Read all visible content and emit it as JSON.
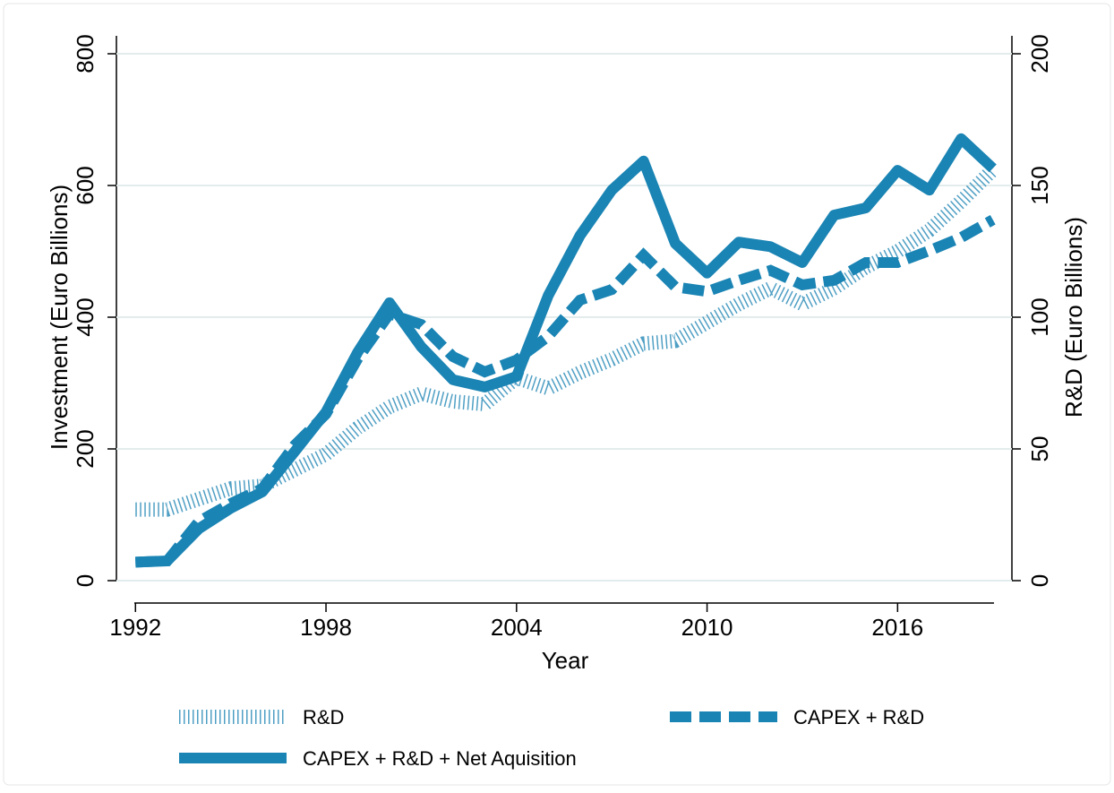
{
  "chart_data": {
    "type": "line",
    "x_label": "Year",
    "y_label": "Investment (Euro Billions)",
    "y2_label": "R&D (Euro Billions)",
    "x": [
      1992,
      1993,
      1994,
      1995,
      1996,
      1997,
      1998,
      1999,
      2000,
      2001,
      2002,
      2003,
      2004,
      2005,
      2006,
      2007,
      2008,
      2009,
      2010,
      2011,
      2012,
      2013,
      2014,
      2015,
      2016,
      2017,
      2018,
      2019
    ],
    "xlim": [
      1991.4,
      2019.6
    ],
    "xticks": [
      1992,
      1998,
      2004,
      2010,
      2016
    ],
    "ylim": [
      0,
      800
    ],
    "yticks": [
      0,
      200,
      400,
      600,
      800
    ],
    "y2lim": [
      0,
      200
    ],
    "y2ticks": [
      0,
      50,
      100,
      150,
      200
    ],
    "grid": true,
    "legend": "bottom",
    "series": [
      {
        "name": "R&D",
        "color": "#4f9fc4",
        "style": "hatched",
        "axis": "y2",
        "values": [
          27,
          27,
          31,
          35,
          36,
          42,
          48,
          58,
          66,
          71,
          68,
          67,
          77,
          73,
          79,
          84,
          90,
          91,
          98,
          105,
          111,
          105,
          111,
          119,
          125,
          133,
          144,
          156
        ]
      },
      {
        "name": "CAPEX + R&D",
        "color": "#1a84b4",
        "style": "dashed",
        "values": [
          28,
          30,
          90,
          117,
          140,
          205,
          253,
          337,
          405,
          389,
          340,
          317,
          335,
          371,
          426,
          442,
          494,
          446,
          439,
          456,
          471,
          449,
          456,
          483,
          483,
          501,
          521,
          548
        ]
      },
      {
        "name": "CAPEX + R&D + Net Aquisition",
        "color": "#1a84b4",
        "style": "solid",
        "values": [
          28,
          30,
          79,
          110,
          135,
          195,
          256,
          347,
          422,
          355,
          305,
          294,
          310,
          433,
          524,
          593,
          637,
          512,
          467,
          514,
          507,
          483,
          555,
          566,
          623,
          593,
          671,
          626
        ]
      }
    ]
  }
}
